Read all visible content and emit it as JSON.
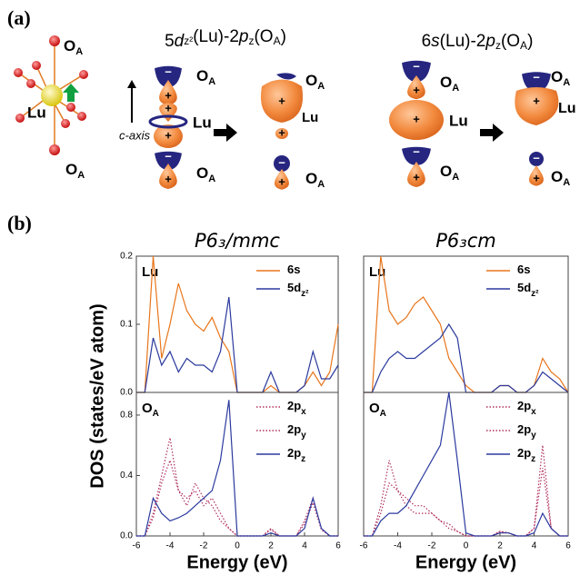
{
  "panel_a": {
    "label": "(a)",
    "title1": [
      "5",
      "d",
      "z²",
      "(Lu)-2",
      "p",
      "z",
      "(O",
      "A",
      ")"
    ],
    "title2": [
      "6",
      "s",
      "(Lu)-2",
      "p",
      "z",
      "(O",
      "A",
      ")"
    ],
    "lu": "Lu",
    "o": "O",
    "a": "A",
    "c_axis": "c-axis",
    "plus": "+",
    "minus": "−"
  },
  "panel_b": {
    "label": "(b)",
    "ylabel": "DOS (states/eV atom)"
  },
  "chart_data": [
    {
      "type": "line",
      "title": "P6₃/mmc",
      "label": [
        "Lu"
      ],
      "xlim": [
        -6,
        6
      ],
      "ylim": [
        0,
        0.2
      ],
      "yticks": [
        {
          "value": 0,
          "label": "0.0"
        },
        0.1,
        0.2
      ],
      "x": [
        -6,
        -5.5,
        -5,
        -4.5,
        -4,
        -3.5,
        -3,
        -2.5,
        -2,
        -1.5,
        -1,
        -0.5,
        0,
        0.5,
        1,
        1.5,
        2,
        2.5,
        3,
        3.5,
        4,
        4.5,
        5,
        5.5,
        6
      ],
      "series": [
        {
          "name": "6s",
          "color": "#e8761c",
          "style": "solid",
          "values": [
            0,
            0,
            0.2,
            0.05,
            0.1,
            0.16,
            0.12,
            0.1,
            0.09,
            0.11,
            0.08,
            0.06,
            0,
            0,
            0,
            0,
            0.01,
            0,
            0,
            0,
            0.01,
            0.03,
            0.01,
            0.03,
            0.1
          ]
        },
        {
          "name": "5dz²",
          "color": "#2b3a9e",
          "style": "solid",
          "values": [
            0,
            0,
            0.08,
            0.04,
            0.06,
            0.03,
            0.05,
            0.04,
            0.04,
            0.03,
            0.06,
            0.14,
            0,
            0,
            0,
            0,
            0.03,
            0,
            0,
            0,
            0.01,
            0.06,
            0.02,
            0.02,
            0.04
          ]
        }
      ]
    },
    {
      "type": "line",
      "label": [
        "O",
        "A"
      ],
      "xlabel": "Energy (eV)",
      "xlim": [
        -6,
        6
      ],
      "ylim": [
        0,
        0.95
      ],
      "yticks": [
        {
          "value": 0,
          "label": "0.0"
        },
        0.4,
        0.8
      ],
      "xticks": [
        -6,
        -4,
        -2,
        0,
        2,
        4,
        6
      ],
      "x": [
        -6,
        -5.5,
        -5,
        -4.5,
        -4,
        -3.5,
        -3,
        -2.5,
        -2,
        -1.5,
        -1,
        -0.5,
        0,
        0.5,
        1,
        1.5,
        2,
        2.5,
        3,
        3.5,
        4,
        4.5,
        5,
        5.5,
        6
      ],
      "series": [
        {
          "name": "2px",
          "color": "#b03060",
          "style": "dotted",
          "values": [
            0,
            0,
            0.15,
            0.4,
            0.65,
            0.3,
            0.2,
            0.35,
            0.25,
            0.2,
            0.1,
            0.05,
            0,
            0,
            0,
            0,
            0.05,
            0,
            0,
            0,
            0.1,
            0.25,
            0.05,
            0,
            0
          ]
        },
        {
          "name": "2py",
          "color": "#b03060",
          "style": "dotted",
          "values": [
            0,
            0,
            0.12,
            0.35,
            0.5,
            0.3,
            0.25,
            0.3,
            0.2,
            0.25,
            0.15,
            0.05,
            0,
            0,
            0,
            0,
            0.04,
            0,
            0,
            0,
            0.08,
            0.22,
            0.04,
            0,
            0
          ]
        },
        {
          "name": "2pz",
          "color": "#2b3a9e",
          "style": "solid",
          "values": [
            0,
            0,
            0.25,
            0.15,
            0.1,
            0.12,
            0.15,
            0.2,
            0.25,
            0.3,
            0.5,
            0.9,
            0,
            0,
            0,
            0,
            0.02,
            0,
            0,
            0,
            0.05,
            0.25,
            0.05,
            0,
            0
          ]
        }
      ]
    },
    {
      "type": "line",
      "title": "P6₃cm",
      "label": [
        "Lu"
      ],
      "xlim": [
        -6,
        6
      ],
      "ylim": [
        0,
        0.2
      ],
      "x": [
        -6,
        -5.5,
        -5,
        -4.5,
        -4,
        -3.5,
        -3,
        -2.5,
        -2,
        -1.5,
        -1,
        -0.5,
        0,
        0.5,
        1,
        1.5,
        2,
        2.5,
        3,
        3.5,
        4,
        4.5,
        5,
        5.5,
        6
      ],
      "series": [
        {
          "name": "6s",
          "color": "#e8761c",
          "style": "solid",
          "values": [
            0,
            0,
            0.2,
            0.12,
            0.1,
            0.11,
            0.13,
            0.14,
            0.12,
            0.1,
            0.05,
            0.03,
            0.01,
            0,
            0,
            0,
            0.01,
            0.01,
            0,
            0,
            0.01,
            0.05,
            0.03,
            0.02,
            0
          ]
        },
        {
          "name": "5dz²",
          "color": "#2b3a9e",
          "style": "solid",
          "values": [
            0,
            0,
            0.03,
            0.05,
            0.06,
            0.05,
            0.05,
            0.06,
            0.07,
            0.08,
            0.1,
            0.08,
            0,
            0,
            0,
            0,
            0.01,
            0.01,
            0,
            0,
            0.01,
            0.03,
            0.02,
            0.01,
            0
          ]
        }
      ]
    },
    {
      "type": "line",
      "label": [
        "O",
        "A"
      ],
      "xlabel": "Energy (eV)",
      "xlim": [
        -6,
        6
      ],
      "ylim": [
        0,
        0.95
      ],
      "xticks": [
        -6,
        -4,
        -2,
        0,
        2,
        4,
        6
      ],
      "x": [
        -6,
        -5.5,
        -5,
        -4.5,
        -4,
        -3.5,
        -3,
        -2.5,
        -2,
        -1.5,
        -1,
        -0.5,
        0,
        0.5,
        1,
        1.5,
        2,
        2.5,
        3,
        3.5,
        4,
        4.5,
        5,
        5.5,
        6
      ],
      "series": [
        {
          "name": "2px",
          "color": "#b03060",
          "style": "dotted",
          "values": [
            0,
            0,
            0.2,
            0.5,
            0.3,
            0.25,
            0.2,
            0.2,
            0.15,
            0.1,
            0.08,
            0.03,
            0,
            0,
            0,
            0,
            0.03,
            0.02,
            0,
            0,
            0.05,
            0.6,
            0.05,
            0,
            0
          ]
        },
        {
          "name": "2py",
          "color": "#b03060",
          "style": "dotted",
          "values": [
            0,
            0,
            0.15,
            0.35,
            0.3,
            0.2,
            0.15,
            0.15,
            0.15,
            0.1,
            0.05,
            0.03,
            0,
            0,
            0,
            0,
            0.03,
            0.02,
            0,
            0,
            0.05,
            0.45,
            0.05,
            0,
            0
          ]
        },
        {
          "name": "2pz",
          "color": "#2b3a9e",
          "style": "solid",
          "values": [
            0,
            0,
            0.1,
            0.15,
            0.15,
            0.2,
            0.3,
            0.4,
            0.5,
            0.6,
            0.95,
            0.5,
            0.02,
            0,
            0,
            0,
            0.02,
            0.02,
            0,
            0,
            0.02,
            0.15,
            0.05,
            0,
            0
          ]
        }
      ]
    }
  ]
}
